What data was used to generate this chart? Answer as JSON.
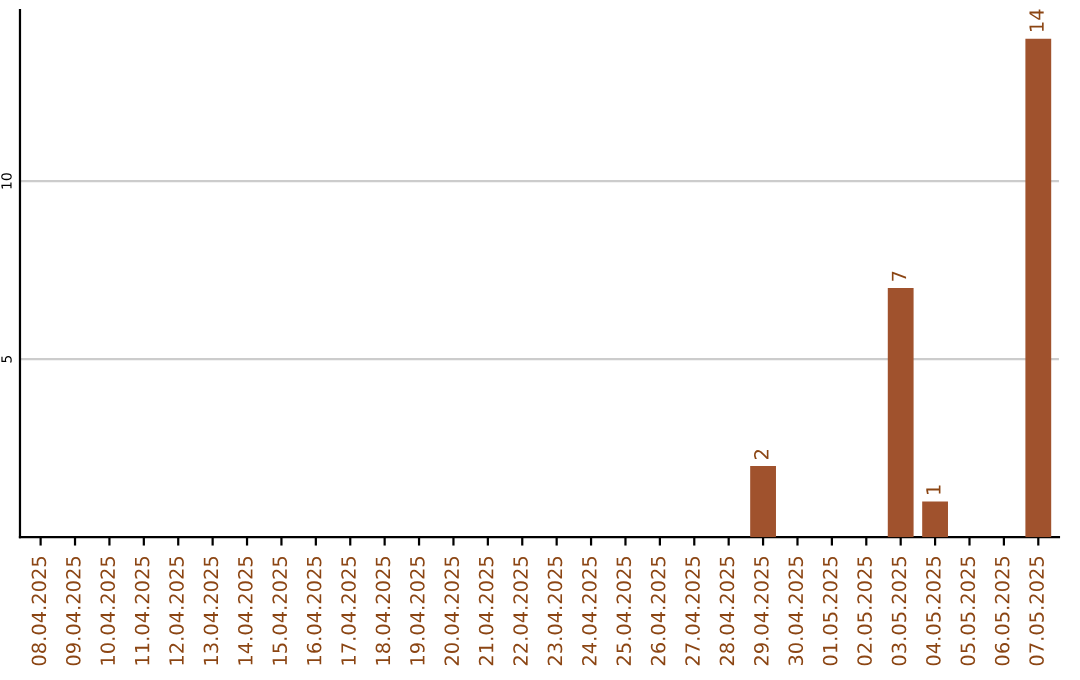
{
  "chart_data": {
    "type": "bar",
    "categories": [
      "08.04.2025",
      "09.04.2025",
      "10.04.2025",
      "11.04.2025",
      "12.04.2025",
      "13.04.2025",
      "14.04.2025",
      "15.04.2025",
      "16.04.2025",
      "17.04.2025",
      "18.04.2025",
      "19.04.2025",
      "20.04.2025",
      "21.04.2025",
      "22.04.2025",
      "23.04.2025",
      "24.04.2025",
      "25.04.2025",
      "26.04.2025",
      "27.04.2025",
      "28.04.2025",
      "29.04.2025",
      "30.04.2025",
      "01.05.2025",
      "02.05.2025",
      "03.05.2025",
      "04.05.2025",
      "05.05.2025",
      "06.05.2025",
      "07.05.2025"
    ],
    "values": [
      0,
      0,
      0,
      0,
      0,
      0,
      0,
      0,
      0,
      0,
      0,
      0,
      0,
      0,
      0,
      0,
      0,
      0,
      0,
      0,
      0,
      2,
      0,
      0,
      0,
      7,
      1,
      0,
      0,
      14
    ],
    "value_labels": [
      null,
      null,
      null,
      null,
      null,
      null,
      null,
      null,
      null,
      null,
      null,
      null,
      null,
      null,
      null,
      null,
      null,
      null,
      null,
      null,
      null,
      "2",
      null,
      null,
      null,
      "7",
      "1",
      null,
      null,
      "14"
    ],
    "color": "#a0522d",
    "ylim": [
      0,
      14.8
    ],
    "yticks": [
      5,
      10
    ],
    "grid": "y",
    "legend": false
  }
}
